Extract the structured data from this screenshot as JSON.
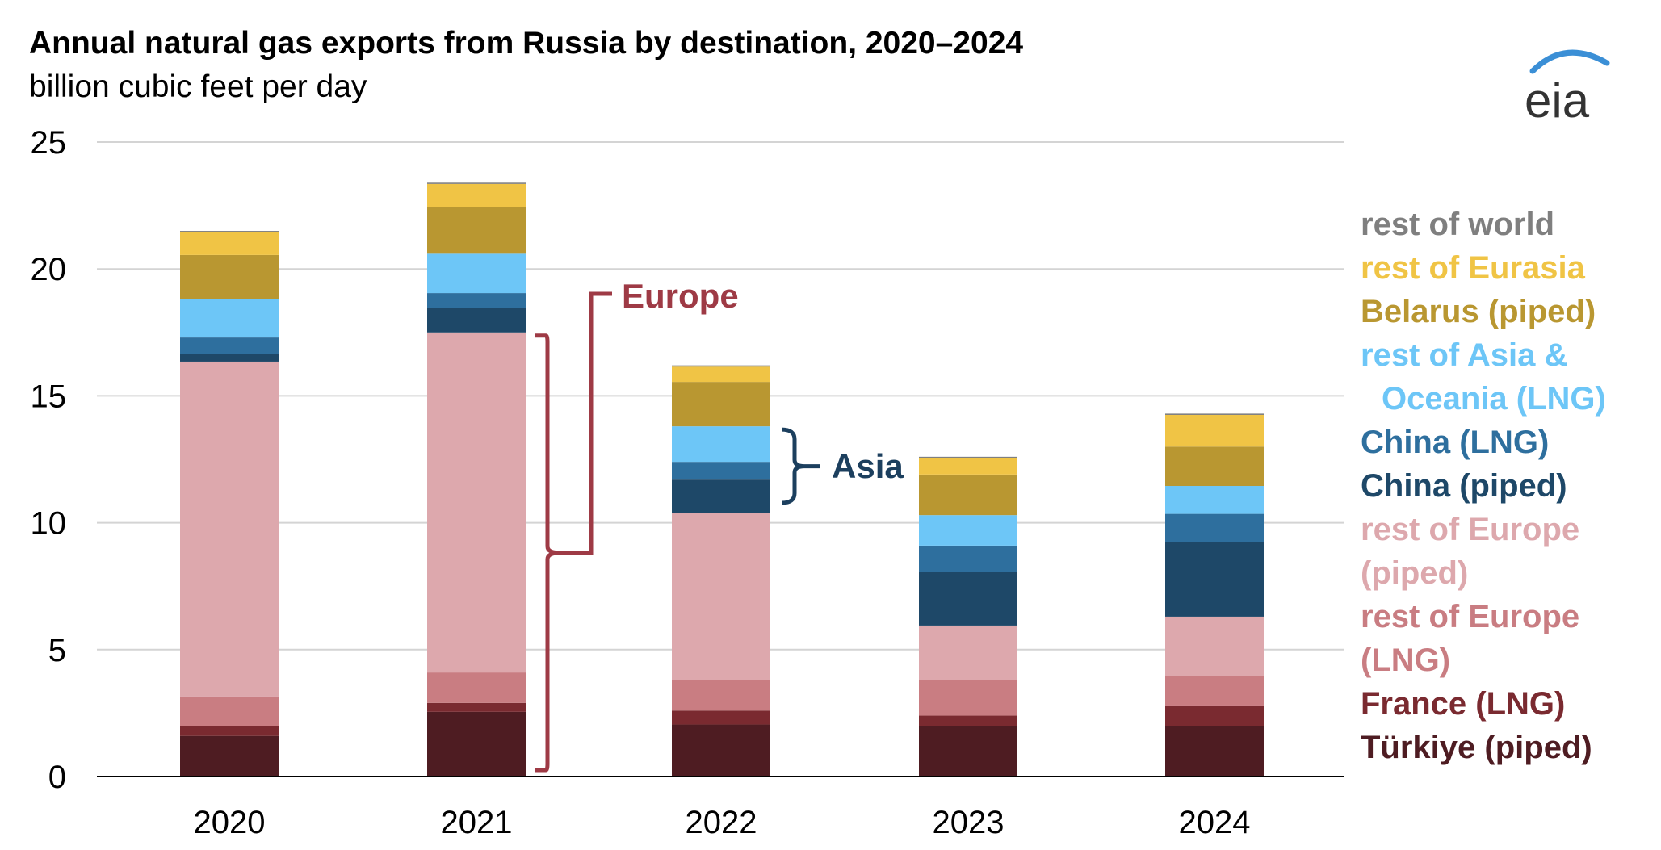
{
  "title": "Annual natural gas exports from Russia by destination, 2020–2024",
  "subtitle": "billion cubic feet per day",
  "logo": {
    "text": "eia",
    "accent_color": "#3b8fd6"
  },
  "annotations": [
    {
      "label": "Europe",
      "color": "#9e3a45"
    },
    {
      "label": "Asia",
      "color": "#1c3f5e"
    }
  ],
  "chart_data": {
    "type": "bar",
    "stacked": true,
    "categories": [
      "2020",
      "2021",
      "2022",
      "2023",
      "2024"
    ],
    "ylim": [
      0,
      25
    ],
    "yticks": [
      0,
      5,
      10,
      15,
      20,
      25
    ],
    "grid": true,
    "legend_position": "right",
    "xlabel": "",
    "ylabel": "",
    "series": [
      {
        "name": "Türkiye (piped)",
        "color": "#4e1c22",
        "values": [
          1.6,
          2.55,
          2.05,
          2.0,
          2.0
        ]
      },
      {
        "name": "France (LNG)",
        "color": "#7a2a30",
        "values": [
          0.4,
          0.35,
          0.55,
          0.4,
          0.8
        ]
      },
      {
        "name": "rest of Europe (LNG)",
        "color": "#c97d82",
        "values": [
          1.15,
          1.2,
          1.2,
          1.4,
          1.15
        ]
      },
      {
        "name": "rest of Europe (piped)",
        "color": "#dda8ad",
        "values": [
          13.2,
          13.4,
          6.6,
          2.15,
          2.35
        ]
      },
      {
        "name": "China (piped)",
        "color": "#1e4868",
        "values": [
          0.3,
          0.95,
          1.3,
          2.1,
          2.95
        ]
      },
      {
        "name": "China (LNG)",
        "color": "#2e6f9e",
        "values": [
          0.65,
          0.6,
          0.7,
          1.05,
          1.1
        ]
      },
      {
        "name": "rest of Asia & Oceania (LNG)",
        "color": "#6dc6f7",
        "values": [
          1.5,
          1.55,
          1.4,
          1.2,
          1.1
        ]
      },
      {
        "name": "Belarus (piped)",
        "color": "#b99731",
        "values": [
          1.75,
          1.85,
          1.75,
          1.6,
          1.55
        ]
      },
      {
        "name": "rest of Eurasia",
        "color": "#f0c445",
        "values": [
          0.9,
          0.9,
          0.6,
          0.65,
          1.25
        ]
      },
      {
        "name": "rest of world",
        "color": "#7f7f7f",
        "values": [
          0.05,
          0.05,
          0.05,
          0.05,
          0.05
        ]
      }
    ],
    "legend": [
      {
        "lines": [
          "rest of world"
        ],
        "color": "#7f7f7f"
      },
      {
        "lines": [
          "rest of Eurasia"
        ],
        "color": "#f0c445"
      },
      {
        "lines": [
          "Belarus (piped)"
        ],
        "color": "#b99731"
      },
      {
        "lines": [
          "rest of Asia &",
          "Oceania (LNG)"
        ],
        "color": "#6dc6f7"
      },
      {
        "lines": [
          "China (LNG)"
        ],
        "color": "#2e6f9e"
      },
      {
        "lines": [
          "China (piped)"
        ],
        "color": "#1e4868"
      },
      {
        "lines": [
          "rest of Europe",
          "(piped)"
        ],
        "color": "#dda8ad"
      },
      {
        "lines": [
          "rest of Europe",
          "(LNG)"
        ],
        "color": "#c97d82"
      },
      {
        "lines": [
          "France (LNG)"
        ],
        "color": "#7a2a30"
      },
      {
        "lines": [
          "Türkiye (piped)"
        ],
        "color": "#4e1c22"
      }
    ]
  }
}
